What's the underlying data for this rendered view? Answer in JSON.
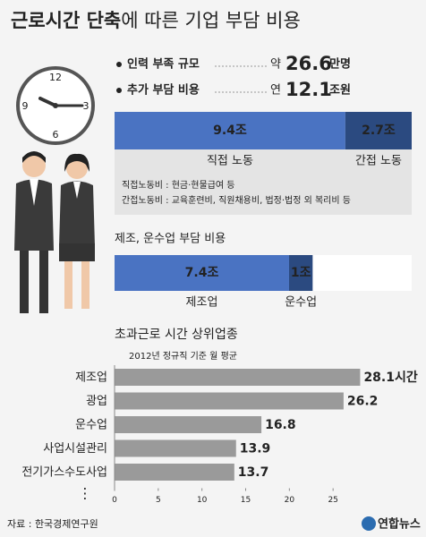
{
  "title": {
    "bold": "근로시간 단축",
    "rest": "에 따른 기업 부담 비용"
  },
  "facts": [
    {
      "label": "인력 부족 규모",
      "prefix": "약",
      "value": "26.6",
      "unit": "만명"
    },
    {
      "label": "추가 부담 비용",
      "prefix": "연",
      "value": "12.1",
      "unit": "조원"
    }
  ],
  "chart_data": [
    {
      "type": "stacked-bar",
      "xlim": [
        0,
        12.1
      ],
      "series": [
        {
          "name": "직접 노동",
          "color": "#4a73c2",
          "values": [
            9.4
          ],
          "value_labels": [
            "9.4조"
          ]
        },
        {
          "name": "간접 노동",
          "color": "#2b4a80",
          "values": [
            2.7
          ],
          "value_labels": [
            "2.7조"
          ]
        }
      ],
      "notes": [
        "직접노동비 : 현금·현물급여 등",
        "간접노동비 : 교육훈련비, 직원채용비, 법정·법정 외 복리비 등"
      ]
    },
    {
      "type": "stacked-bar",
      "title": "제조, 운수업 부담 비용",
      "xlim": [
        0,
        12.6
      ],
      "series": [
        {
          "name": "제조업",
          "color": "#4a73c2",
          "values": [
            7.4
          ],
          "value_labels": [
            "7.4조"
          ]
        },
        {
          "name": "운수업",
          "color": "#2b4a80",
          "values": [
            1
          ],
          "value_labels": [
            "1조"
          ]
        }
      ]
    },
    {
      "type": "hbar",
      "title": "초과근로 시간 상위업종",
      "subtitle": "2012년 정규직 기준 월 평균",
      "categories": [
        "제조업",
        "광업",
        "운수업",
        "사업시설관리",
        "전기가스수도사업"
      ],
      "values": [
        28.1,
        26.2,
        16.8,
        13.9,
        13.7
      ],
      "value_labels": [
        "28.1시간",
        "26.2",
        "16.8",
        "13.9",
        "13.7"
      ],
      "color": "#9a9a9a",
      "xlim": [
        0,
        30
      ],
      "xticks": [
        0,
        5,
        10,
        15,
        20,
        25
      ]
    }
  ],
  "source": "자료 : 한국경제연구원",
  "logo": "연합뉴스"
}
